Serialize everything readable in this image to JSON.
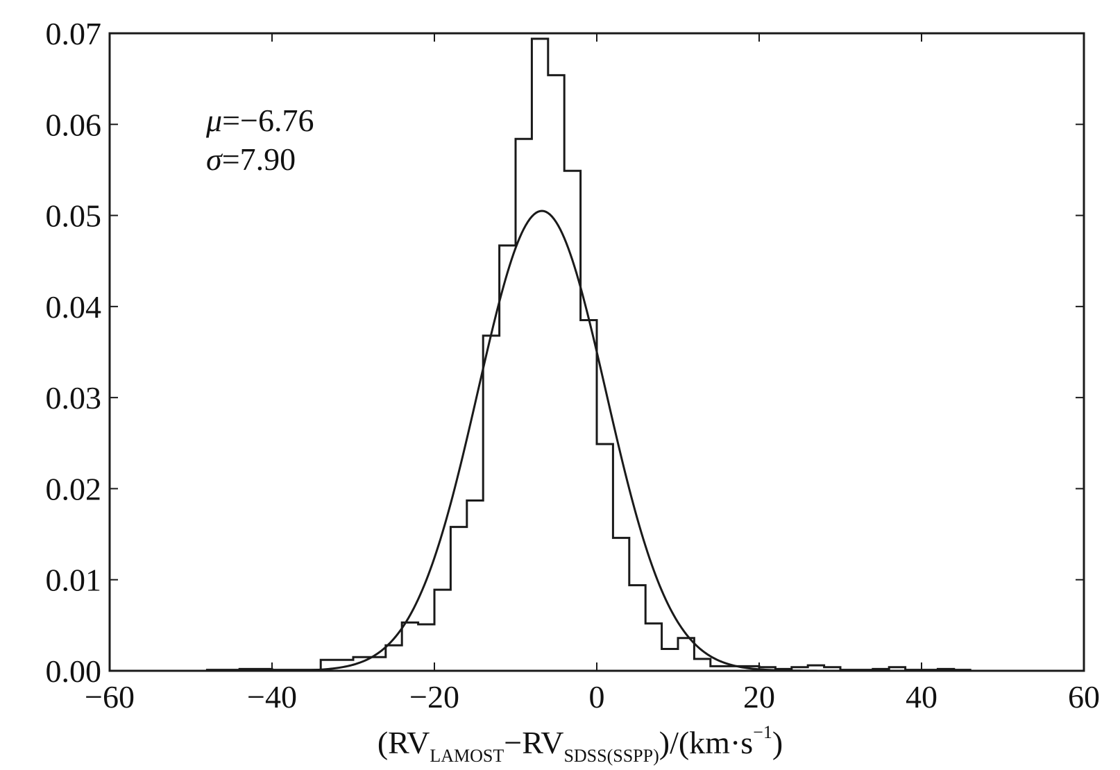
{
  "chart_data": {
    "type": "histogram",
    "xlim": [
      -60,
      60
    ],
    "ylim": [
      0,
      0.07
    ],
    "x_ticks": [
      -60,
      -40,
      -20,
      0,
      20,
      40,
      60
    ],
    "x_tick_labels": [
      "−60",
      "−40",
      "−20",
      "0",
      "20",
      "40",
      "60"
    ],
    "y_ticks": [
      0,
      0.01,
      0.02,
      0.03,
      0.04,
      0.05,
      0.06,
      0.07
    ],
    "y_tick_labels": [
      "0.00",
      "0.01",
      "0.02",
      "0.03",
      "0.04",
      "0.05",
      "0.06",
      "0.07"
    ],
    "xlabel": {
      "open": "(RV",
      "sub1": "LAMOST",
      "mid": "−RV",
      "sub2": "SDSS(SSPP)",
      "unit": ")/(km·s",
      "sup": "−1",
      "close": ")"
    },
    "annotations": {
      "mu_symbol": "μ",
      "mu_value": "=−6.76",
      "sigma_symbol": "σ",
      "sigma_value": "=7.90"
    },
    "fit": {
      "type": "gaussian",
      "mu": -6.76,
      "sigma": 7.9
    },
    "histogram": {
      "bin_edges": [
        -48,
        -46,
        -44,
        -42,
        -40,
        -38,
        -36,
        -34,
        -32,
        -30,
        -28,
        -26,
        -24,
        -22,
        -20,
        -18,
        -16,
        -14,
        -12,
        -10,
        -8,
        -6,
        -4,
        -2,
        0,
        2,
        4,
        6,
        8,
        10,
        12,
        14,
        16,
        18,
        20,
        22,
        24,
        26,
        28,
        30,
        32,
        34,
        36,
        38,
        40,
        42,
        44,
        46,
        48
      ],
      "counts": [
        0.0001,
        0.0001,
        0.0002,
        0.0002,
        0.0001,
        0.0001,
        0.0001,
        0.0012,
        0.0012,
        0.0015,
        0.0015,
        0.0028,
        0.0053,
        0.0051,
        0.0089,
        0.0158,
        0.0187,
        0.0368,
        0.0467,
        0.0584,
        0.0694,
        0.0654,
        0.0549,
        0.0385,
        0.0249,
        0.0146,
        0.0094,
        0.0052,
        0.0024,
        0.0036,
        0.0013,
        0.0005,
        0.0005,
        0.0005,
        0.0004,
        0.0002,
        0.0004,
        0.0006,
        0.0004,
        0.0001,
        0.0001,
        0.0002,
        0.0004,
        0.0001,
        0.0001,
        0.0002,
        0.0001,
        0.0
      ]
    }
  }
}
